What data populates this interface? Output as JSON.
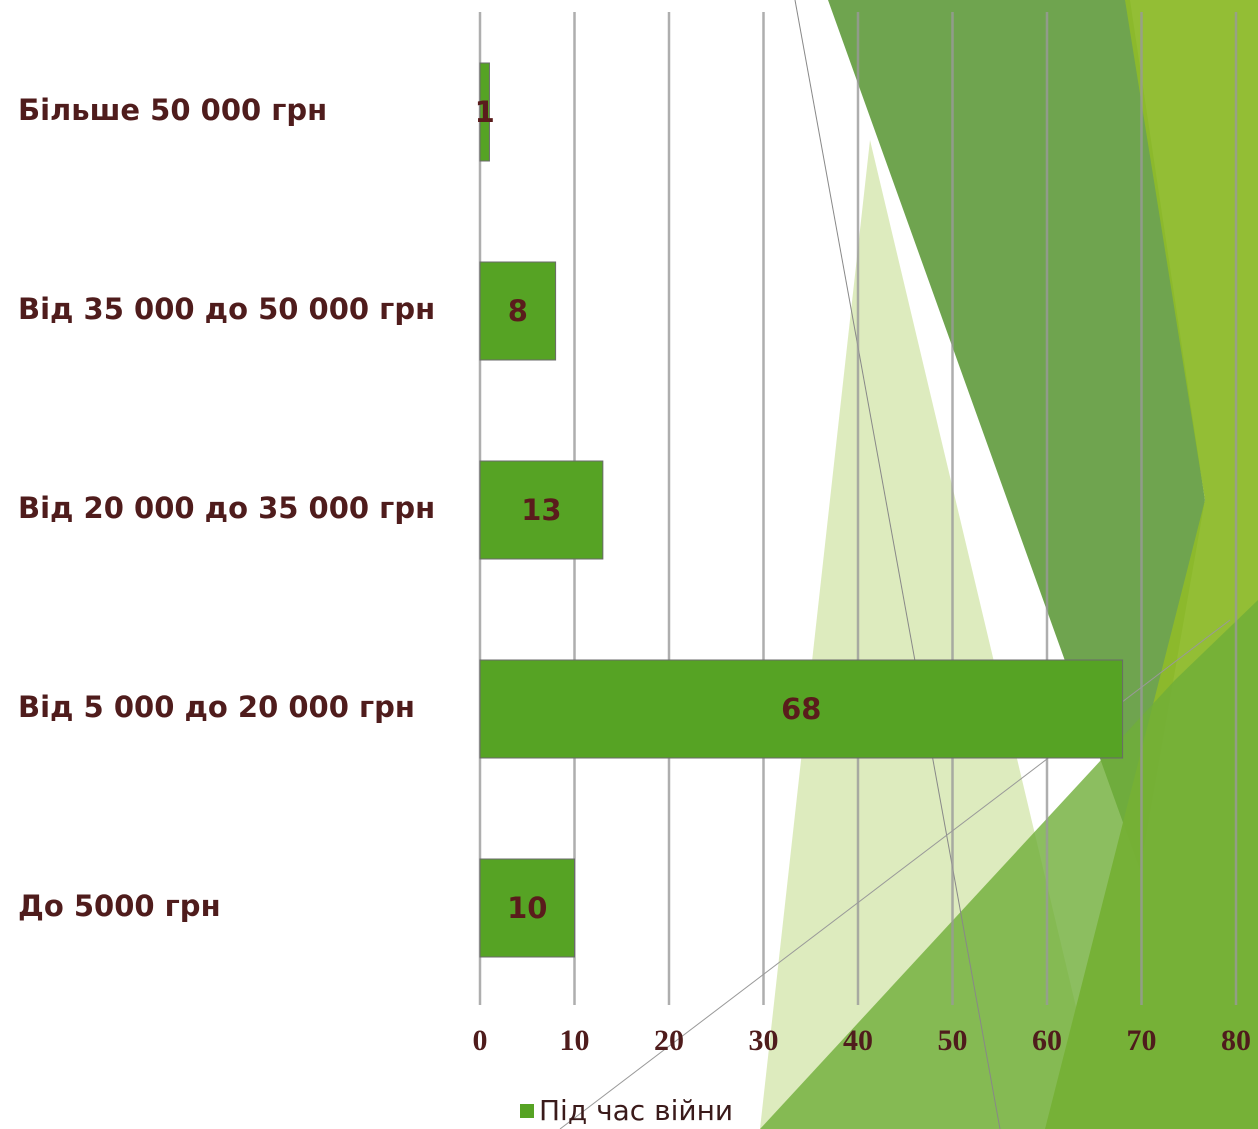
{
  "chart_data": {
    "type": "bar",
    "orientation": "horizontal",
    "categories": [
      "Більше 50 000 грн",
      "Від 35 000 до 50 000 грн",
      "Від 20 000 до 35 000 грн",
      "Від 5 000 до 20 000 грн",
      "До 5000 грн"
    ],
    "series": [
      {
        "name": "Під час війни",
        "color": "#56a324",
        "values": [
          1,
          8,
          13,
          68,
          10
        ]
      }
    ],
    "xlim": [
      0,
      80
    ],
    "xticks": [
      0,
      10,
      20,
      30,
      40,
      50,
      60,
      70,
      80
    ],
    "grid": true,
    "legend": "bottom"
  }
}
